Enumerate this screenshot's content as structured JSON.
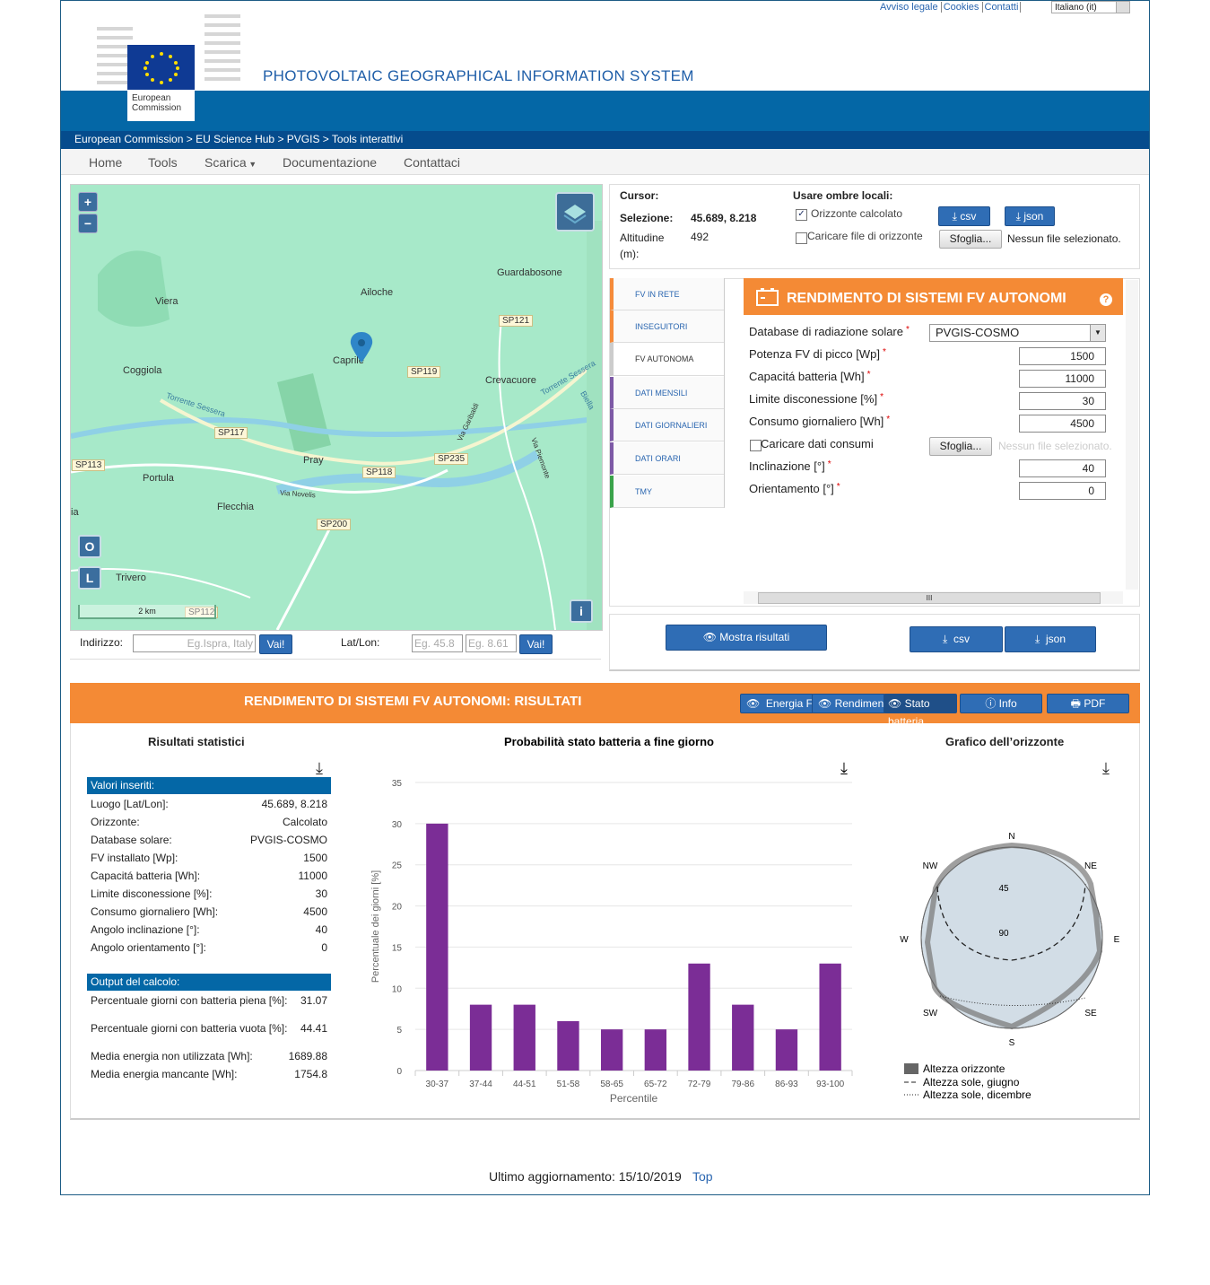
{
  "header": {
    "links": [
      "Avviso legale",
      "Cookies",
      "Contatti"
    ],
    "language": "Italiano (it)",
    "logo_text": [
      "European",
      "Commission"
    ],
    "title": "PHOTOVOLTAIC GEOGRAPHICAL INFORMATION SYSTEM",
    "breadcrumb": "European Commission > EU Science Hub > PVGIS > Tools interattivi"
  },
  "nav": [
    "Home",
    "Tools",
    "Scarica",
    "Documentazione",
    "Contattaci"
  ],
  "map": {
    "places": [
      "Guardabosone",
      "Viera",
      "Ailoche",
      "Caprile",
      "Coggiola",
      "Crevacuore",
      "Pray",
      "Portula",
      "Flecchia",
      "Trivero",
      "ia"
    ],
    "roads": [
      "SP121",
      "SP119",
      "SP117",
      "SP113",
      "SP118",
      "SP235",
      "SP200",
      "SP112"
    ],
    "streets": [
      "Torrente Sessera",
      "Via Novelis",
      "Via Garibaldi",
      "Via Piemonte",
      "Torrente Sessera",
      "Biella"
    ],
    "controls": [
      "+",
      "−",
      "O",
      "L",
      "i"
    ],
    "scale": "2 km"
  },
  "search": {
    "address_label": "Indirizzo:",
    "address_placeholder": "Eg.Ispra, Italy",
    "go": "Vai!",
    "latlon_label": "Lat/Lon:",
    "lat_placeholder": "Eg. 45.8",
    "lon_placeholder": "Eg. 8.61"
  },
  "location": {
    "cursor": "Cursor:",
    "selection_label": "Selezione:",
    "selection": "45.689, 8.218",
    "altitude_label": "Altitudine (m):",
    "altitude": "492",
    "shadows_label": "Usare ombre locali:",
    "horizon_calc": "Orizzonte calcolato",
    "csv": "csv",
    "json": "json",
    "horizon_file": "Caricare file di orizzonte",
    "browse": "Sfoglia...",
    "no_file": "Nessun file selezionato."
  },
  "tabs": [
    "FV IN RETE",
    "INSEGUITORI",
    "FV AUTONOMA",
    "DATI MENSILI",
    "DATI GIORNALIERI",
    "DATI ORARI",
    "TMY"
  ],
  "form": {
    "title": "RENDIMENTO DI SISTEMI FV AUTONOMI",
    "help": "?",
    "required_mark": "*",
    "database_label": "Database di radiazione solare",
    "database": "PVGIS-COSMO",
    "peak_label": "Potenza FV di picco [Wp]",
    "peak": "1500",
    "battery_label": "Capacitá batteria [Wh]",
    "battery": "11000",
    "cutoff_label": "Limite disconessione [%]",
    "cutoff": "30",
    "consumption_label": "Consumo giornaliero [Wh]",
    "consumption": "4500",
    "consumption_file": "Caricare dati consumi",
    "browse": "Sfoglia...",
    "no_file": "Nessun file selezionato.",
    "slope_label": "Inclinazione [°]",
    "slope": "40",
    "azimuth_label": "Orientamento [°]",
    "azimuth": "0",
    "scroll_mark": "III"
  },
  "actions": {
    "show": "Mostra risultati",
    "csv": "csv",
    "json": "json"
  },
  "results": {
    "title": "RENDIMENTO DI SISTEMI FV AUTONOMI: RISULTATI",
    "buttons": [
      "Energia F",
      "Rendimen",
      "Stato batteria",
      "Info",
      "PDF"
    ],
    "stats_title": "Risultati statistici",
    "inputs_header": "Valori inseriti:",
    "inputs": [
      [
        "Luogo [Lat/Lon]:",
        "45.689, 8.218"
      ],
      [
        "Orizzonte:",
        "Calcolato"
      ],
      [
        "Database solare:",
        "PVGIS-COSMO"
      ],
      [
        "FV installato [Wp]:",
        "1500"
      ],
      [
        "Capacitá batteria [Wh]:",
        "11000"
      ],
      [
        "Limite disconessione [%]:",
        "30"
      ],
      [
        "Consumo giornaliero [Wh]:",
        "4500"
      ],
      [
        "Angolo inclinazione [°]:",
        "40"
      ],
      [
        "Angolo orientamento [°]:",
        "0"
      ]
    ],
    "outputs_header": "Output del calcolo:",
    "outputs": [
      [
        "Percentuale giorni con batteria piena [%]:",
        "31.07"
      ],
      [
        "Percentuale giorni con batteria vuota [%]:",
        "44.41"
      ],
      [
        "Media energia non utilizzata [Wh]:",
        "1689.88"
      ],
      [
        "Media energia mancante [Wh]:",
        "1754.8"
      ]
    ],
    "horizon": {
      "title": "Grafico dell’orizzonte",
      "directions": [
        "N",
        "NE",
        "E",
        "SE",
        "S",
        "SW",
        "W",
        "NW"
      ],
      "rings": [
        "45",
        "90"
      ],
      "legend": [
        "Altezza orizzonte",
        "Altezza sole, giugno",
        "Altezza sole, dicembre"
      ]
    }
  },
  "chart_data": {
    "type": "bar",
    "title": "Probabilità stato batteria a fine giorno",
    "x_label": "Percentile",
    "y_label": "Percentuale dei giorni [%]",
    "categories": [
      "30-37",
      "37-44",
      "44-51",
      "51-58",
      "58-65",
      "65-72",
      "72-79",
      "79-86",
      "86-93",
      "93-100"
    ],
    "values": [
      30,
      8,
      8,
      6,
      5,
      5,
      13,
      8,
      5,
      13
    ],
    "color": "#7b2d96",
    "ylim": [
      0,
      35
    ],
    "yticks": [
      0,
      5,
      10,
      15,
      20,
      25,
      30,
      35
    ],
    "grid": true
  },
  "footer": {
    "updated": "Ultimo aggiornamento: 15/10/2019",
    "top": "Top"
  }
}
